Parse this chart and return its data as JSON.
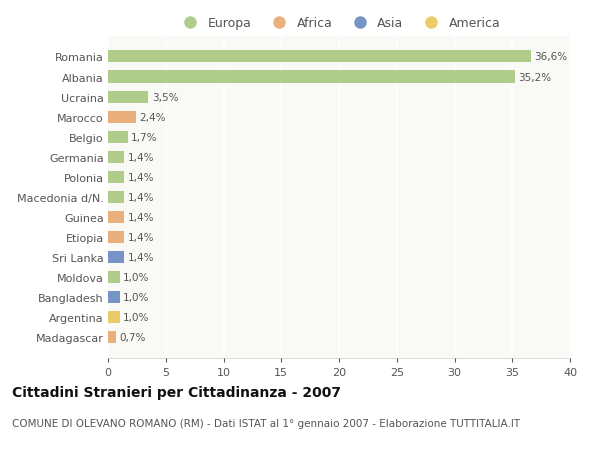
{
  "categories": [
    "Romania",
    "Albania",
    "Ucraina",
    "Marocco",
    "Belgio",
    "Germania",
    "Polonia",
    "Macedonia d/N.",
    "Guinea",
    "Etiopia",
    "Sri Lanka",
    "Moldova",
    "Bangladesh",
    "Argentina",
    "Madagascar"
  ],
  "values": [
    36.6,
    35.2,
    3.5,
    2.4,
    1.7,
    1.4,
    1.4,
    1.4,
    1.4,
    1.4,
    1.4,
    1.0,
    1.0,
    1.0,
    0.7
  ],
  "labels": [
    "36,6%",
    "35,2%",
    "3,5%",
    "2,4%",
    "1,7%",
    "1,4%",
    "1,4%",
    "1,4%",
    "1,4%",
    "1,4%",
    "1,4%",
    "1,0%",
    "1,0%",
    "1,0%",
    "0,7%"
  ],
  "continents": [
    "Europa",
    "Europa",
    "Europa",
    "Africa",
    "Europa",
    "Europa",
    "Europa",
    "Europa",
    "Africa",
    "Africa",
    "Asia",
    "Europa",
    "Asia",
    "America",
    "Africa"
  ],
  "continent_colors": {
    "Europa": "#a8c880",
    "Africa": "#e8a870",
    "Asia": "#6888c0",
    "America": "#e8c858"
  },
  "legend_order": [
    "Europa",
    "Africa",
    "Asia",
    "America"
  ],
  "title": "Cittadini Stranieri per Cittadinanza - 2007",
  "subtitle": "COMUNE DI OLEVANO ROMANO (RM) - Dati ISTAT al 1° gennaio 2007 - Elaborazione TUTTITALIA.IT",
  "xlim": [
    0,
    40
  ],
  "xticks": [
    0,
    5,
    10,
    15,
    20,
    25,
    30,
    35,
    40
  ],
  "background_color": "#ffffff",
  "plot_bg_color": "#f9f9f6",
  "grid_color": "#ffffff",
  "bar_height": 0.6,
  "title_fontsize": 10,
  "subtitle_fontsize": 7.5,
  "label_fontsize": 7.5,
  "tick_fontsize": 8,
  "legend_fontsize": 9
}
